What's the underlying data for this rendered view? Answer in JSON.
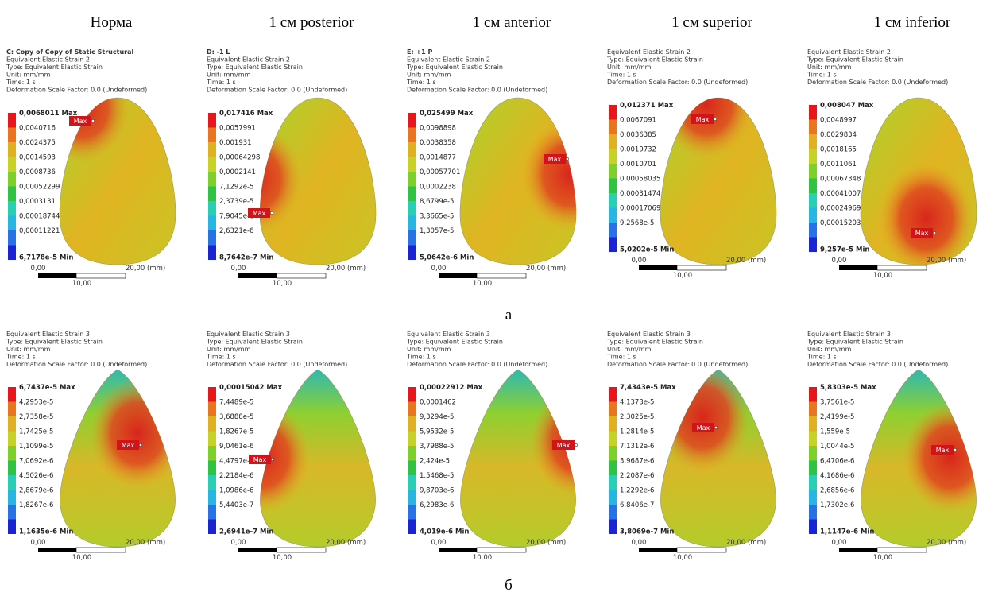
{
  "column_titles": [
    "Норма",
    "1 см posterior",
    "1 см anterior",
    "1 см superior",
    "1 см inferior"
  ],
  "rows": [
    {
      "label": "а",
      "panels": [
        {
          "header": [
            "C: Copy of Copy of Static Structural",
            "Equivalent Elastic Strain 2",
            "Type: Equivalent Elastic Strain",
            "Unit: mm/mm",
            "Time: 1 s",
            "Deformation Scale Factor: 0.0 (Undeformed)"
          ],
          "legend": [
            "0,0068011 Max",
            "0,0040716",
            "0,0024375",
            "0,0014593",
            "0,0008736",
            "0,00052299",
            "0,0003131",
            "0,00018744",
            "0,00011221",
            "6,7178e-5 Min"
          ],
          "max_tag": "Max",
          "scale": [
            "0,00",
            "20,00 (mm)",
            "10,00"
          ]
        },
        {
          "header": [
            "D: -1 L",
            "Equivalent Elastic Strain 2",
            "Type: Equivalent Elastic Strain",
            "Unit: mm/mm",
            "Time: 1 s",
            "Deformation Scale Factor: 0.0 (Undeformed)"
          ],
          "legend": [
            "0,017416 Max",
            "0,0057991",
            "0,001931",
            "0,00064298",
            "0,0002141",
            "7,1292e-5",
            "2,3739e-5",
            "7,9045e-6",
            "2,6321e-6",
            "8,7642e-7 Min"
          ],
          "max_tag": "Max",
          "scale": [
            "0,00",
            "20,00 (mm)",
            "10,00"
          ]
        },
        {
          "header": [
            "E: +1 P",
            "Equivalent Elastic Strain 2",
            "Type: Equivalent Elastic Strain",
            "Unit: mm/mm",
            "Time: 1 s",
            "Deformation Scale Factor: 0.0 (Undeformed)"
          ],
          "legend": [
            "0,025499 Max",
            "0,0098898",
            "0,0038358",
            "0,0014877",
            "0,00057701",
            "0,0002238",
            "8,6799e-5",
            "3,3665e-5",
            "1,3057e-5",
            "5,0642e-6 Min"
          ],
          "max_tag": "Max",
          "scale": [
            "0,00",
            "20,00 (mm)",
            "10,00"
          ]
        },
        {
          "header": [
            "Equivalent Elastic Strain 2",
            "Type: Equivalent Elastic Strain",
            "Unit: mm/mm",
            "Time: 1 s",
            "Deformation Scale Factor: 0.0 (Undeformed)"
          ],
          "legend": [
            "0,012371 Max",
            "0,0067091",
            "0,0036385",
            "0,0019732",
            "0,0010701",
            "0,00058035",
            "0,00031474",
            "0,00017069",
            "9,2568e-5",
            "5,0202e-5 Min"
          ],
          "max_tag": "Max",
          "scale": [
            "0,00",
            "20,00 (mm)",
            "10,00"
          ]
        },
        {
          "header": [
            "Equivalent Elastic Strain 2",
            "Type: Equivalent Elastic Strain",
            "Unit: mm/mm",
            "Time: 1 s",
            "Deformation Scale Factor: 0.0 (Undeformed)"
          ],
          "legend": [
            "0,008047 Max",
            "0,0048997",
            "0,0029834",
            "0,0018165",
            "0,0011061",
            "0,00067348",
            "0,00041007",
            "0,00024969",
            "0,00015203",
            "9,257e-5 Min"
          ],
          "max_tag": "Max",
          "scale": [
            "0,00",
            "20,00 (mm)",
            "10,00"
          ]
        }
      ]
    },
    {
      "label": "б",
      "panels": [
        {
          "header": [
            "Equivalent Elastic Strain 3",
            "Type: Equivalent Elastic Strain",
            "Unit: mm/mm",
            "Time: 1 s",
            "Deformation Scale Factor: 0.0 (Undeformed)"
          ],
          "legend": [
            "6,7437e-5 Max",
            "4,2953e-5",
            "2,7358e-5",
            "1,7425e-5",
            "1,1099e-5",
            "7,0692e-6",
            "4,5026e-6",
            "2,8679e-6",
            "1,8267e-6",
            "1,1635e-6 Min"
          ],
          "max_tag": "Max",
          "scale": [
            "0,00",
            "20,00 (mm)",
            "10,00"
          ]
        },
        {
          "header": [
            "Equivalent Elastic Strain 3",
            "Type: Equivalent Elastic Strain",
            "Unit: mm/mm",
            "Time: 1 s",
            "Deformation Scale Factor: 0.0 (Undeformed)"
          ],
          "legend": [
            "0,00015042 Max",
            "7,4489e-5",
            "3,6888e-5",
            "1,8267e-5",
            "9,0461e-6",
            "4,4797e-6",
            "2,2184e-6",
            "1,0986e-6",
            "5,4403e-7",
            "2,6941e-7 Min"
          ],
          "max_tag": "Max",
          "scale": [
            "0,00",
            "20,00 (mm)",
            "10,00"
          ]
        },
        {
          "header": [
            "Equivalent Elastic Strain 3",
            "Type: Equivalent Elastic Strain",
            "Unit: mm/mm",
            "Time: 1 s",
            "Deformation Scale Factor: 0.0 (Undeformed)"
          ],
          "legend": [
            "0,00022912 Max",
            "0,0001462",
            "9,3294e-5",
            "5,9532e-5",
            "3,7988e-5",
            "2,424e-5",
            "1,5468e-5",
            "9,8703e-6",
            "6,2983e-6",
            "4,019e-6 Min"
          ],
          "max_tag": "Max",
          "scale": [
            "0,00",
            "20,00 (mm)",
            "10,00"
          ]
        },
        {
          "header": [
            "Equivalent Elastic Strain 3",
            "Type: Equivalent Elastic Strain",
            "Unit: mm/mm",
            "Time: 1 s",
            "Deformation Scale Factor: 0.0 (Undeformed)"
          ],
          "legend": [
            "7,4343e-5 Max",
            "4,1373e-5",
            "2,3025e-5",
            "1,2814e-5",
            "7,1312e-6",
            "3,9687e-6",
            "2,2087e-6",
            "1,2292e-6",
            "6,8406e-7",
            "3,8069e-7 Min"
          ],
          "max_tag": "Max",
          "scale": [
            "0,00",
            "20,00 (mm)",
            "10,00"
          ]
        },
        {
          "header": [
            "Equivalent Elastic Strain 3",
            "Type: Equivalent Elastic Strain",
            "Unit: mm/mm",
            "Time: 1 s",
            "Deformation Scale Factor: 0.0 (Undeformed)"
          ],
          "legend": [
            "5,8303e-5 Max",
            "3,7561e-5",
            "2,4199e-5",
            "1,559e-5",
            "1,0044e-5",
            "6,4706e-6",
            "4,1686e-6",
            "2,6856e-6",
            "1,7302e-6",
            "1,1147e-6 Min"
          ],
          "max_tag": "Max",
          "scale": [
            "0,00",
            "20,00 (mm)",
            "10,00"
          ]
        }
      ]
    }
  ]
}
